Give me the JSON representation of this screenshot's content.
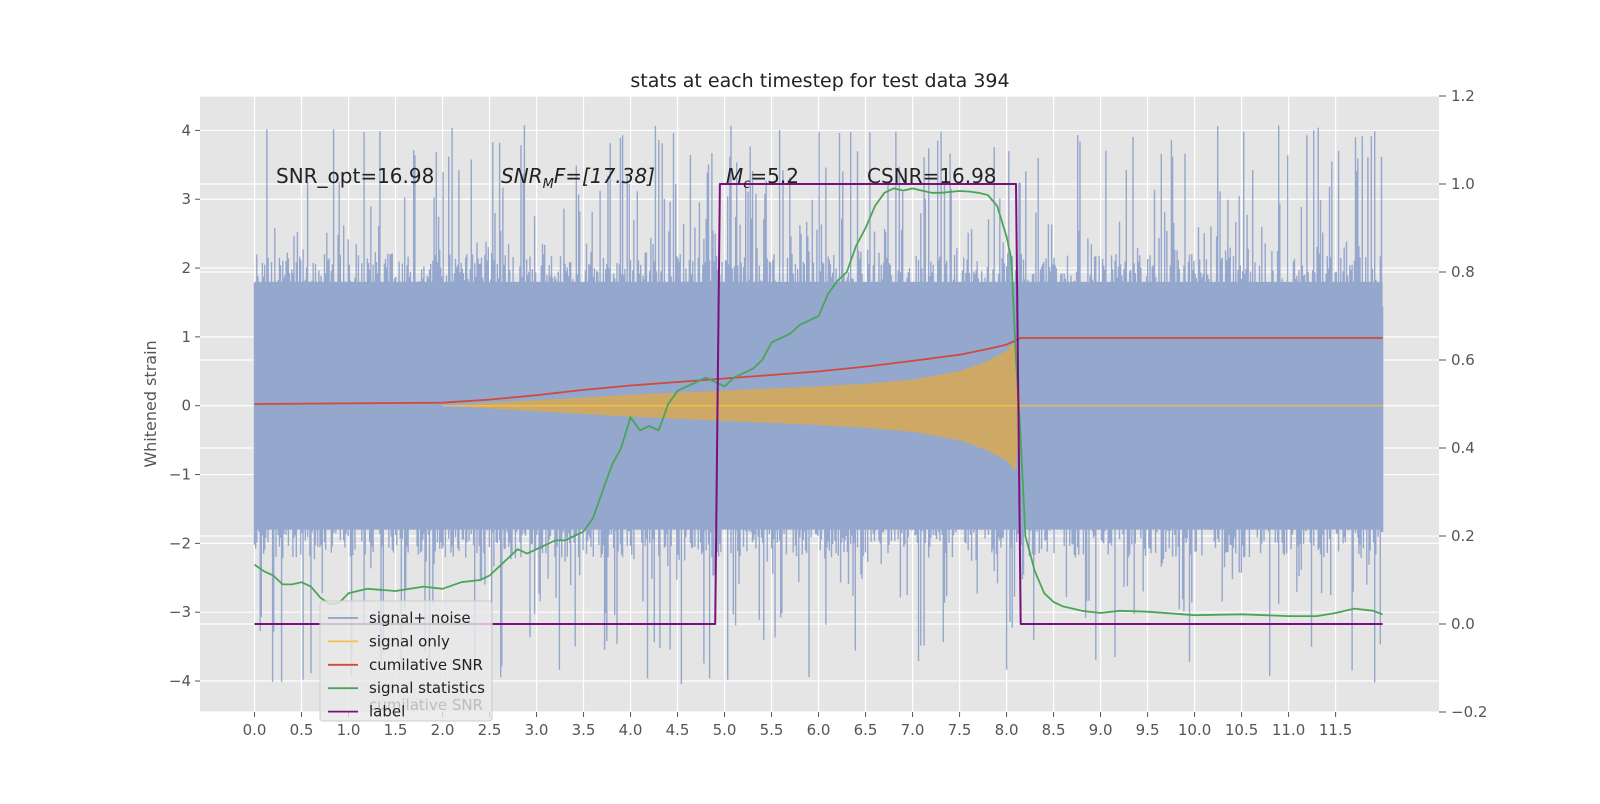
{
  "chart_data": {
    "type": "line",
    "title": "stats at each timestep for test data 394",
    "ylabel": "Whitened strain",
    "xlabel": "",
    "xlim": [
      -0.58,
      12.6
    ],
    "ylim": [
      -4.45,
      4.5
    ],
    "y2lim": [
      -0.2,
      1.2
    ],
    "grid": true,
    "background": "#e5e5e5",
    "x_ticks": [
      "0.0",
      "0.5",
      "1.0",
      "1.5",
      "2.0",
      "2.5",
      "3.0",
      "3.5",
      "4.0",
      "4.5",
      "5.0",
      "5.5",
      "6.0",
      "6.5",
      "7.0",
      "7.5",
      "8.0",
      "8.5",
      "9.0",
      "9.5",
      "10.0",
      "10.5",
      "11.0",
      "11.5"
    ],
    "y_ticks": [
      "4",
      "3",
      "2",
      "1",
      "0",
      "−1",
      "−2",
      "−3",
      "−4"
    ],
    "y2_ticks": [
      "1.2",
      "1.0",
      "0.8",
      "0.6",
      "0.4",
      "0.2",
      "0.0",
      "−0.2"
    ],
    "annotations": {
      "snr_opt": "SNR_opt=16.98",
      "snr_mf_base": "SNR",
      "snr_mf_sub": "M",
      "snr_mf_rest": "F=[17.38]",
      "mc_base": "M",
      "mc_sub": "c",
      "mc_rest": "=5.2",
      "csnr": "CSNR=16.98"
    },
    "legend_position": "lower-left",
    "legend": [
      {
        "label": "signal+ noise",
        "color": "#8da0cb"
      },
      {
        "label": "signal only",
        "color": "#f2c14e"
      },
      {
        "label": "cumilative SNR",
        "color": "#d1493f"
      },
      {
        "label": "signal statistics",
        "color": "#4aa559"
      },
      {
        "label": "label",
        "color": "#7b0f7e"
      }
    ],
    "legend_hidden_text": "cumilative SNR",
    "series": [
      {
        "name": "signal+ noise",
        "axis": "left",
        "style": "noise band",
        "x_range": [
          0,
          12.0
        ],
        "envelope_upper": 2.2,
        "envelope_lower": -2.2,
        "peak_max": 4.1,
        "peak_min": -4.05
      },
      {
        "name": "signal only",
        "axis": "left",
        "style": "chirp fill",
        "x": [
          2.0,
          3.0,
          4.0,
          5.0,
          6.0,
          6.5,
          7.0,
          7.5,
          7.8,
          8.0,
          8.1,
          8.15,
          12.0
        ],
        "amplitude": [
          0.0,
          0.08,
          0.16,
          0.22,
          0.28,
          0.32,
          0.38,
          0.5,
          0.65,
          0.8,
          0.95,
          0.0,
          0.0
        ]
      },
      {
        "name": "cumilative SNR",
        "axis": "right",
        "x": [
          0,
          2.0,
          2.5,
          3.0,
          3.5,
          4.0,
          4.5,
          5.0,
          5.5,
          6.0,
          6.5,
          7.0,
          7.5,
          7.8,
          8.0,
          8.15,
          12.0
        ],
        "y": [
          0.5,
          0.503,
          0.51,
          0.52,
          0.532,
          0.542,
          0.55,
          0.558,
          0.566,
          0.574,
          0.585,
          0.598,
          0.612,
          0.625,
          0.635,
          0.65,
          0.65
        ]
      },
      {
        "name": "signal statistics",
        "axis": "right",
        "x": [
          0,
          0.1,
          0.2,
          0.3,
          0.4,
          0.5,
          0.6,
          0.7,
          0.8,
          0.9,
          1.0,
          1.2,
          1.5,
          1.8,
          2.0,
          2.2,
          2.4,
          2.5,
          2.6,
          2.7,
          2.8,
          2.9,
          3.0,
          3.1,
          3.2,
          3.3,
          3.4,
          3.5,
          3.6,
          3.7,
          3.8,
          3.9,
          4.0,
          4.1,
          4.2,
          4.3,
          4.4,
          4.5,
          4.6,
          4.7,
          4.8,
          4.9,
          5.0,
          5.1,
          5.2,
          5.3,
          5.4,
          5.5,
          5.6,
          5.7,
          5.8,
          5.9,
          6.0,
          6.1,
          6.2,
          6.3,
          6.4,
          6.5,
          6.6,
          6.7,
          6.8,
          6.9,
          7.0,
          7.1,
          7.2,
          7.3,
          7.4,
          7.5,
          7.6,
          7.7,
          7.8,
          7.9,
          8.0,
          8.05,
          8.1,
          8.15,
          8.2,
          8.3,
          8.4,
          8.5,
          8.6,
          8.8,
          9.0,
          9.2,
          9.5,
          10.0,
          10.5,
          11.0,
          11.3,
          11.5,
          11.7,
          11.9,
          12.0
        ],
        "y": [
          0.135,
          0.12,
          0.11,
          0.09,
          0.09,
          0.095,
          0.085,
          0.06,
          0.045,
          0.048,
          0.07,
          0.08,
          0.075,
          0.085,
          0.08,
          0.095,
          0.1,
          0.11,
          0.13,
          0.15,
          0.17,
          0.16,
          0.17,
          0.18,
          0.19,
          0.19,
          0.2,
          0.21,
          0.24,
          0.3,
          0.36,
          0.4,
          0.47,
          0.44,
          0.45,
          0.44,
          0.5,
          0.53,
          0.54,
          0.55,
          0.56,
          0.55,
          0.54,
          0.56,
          0.57,
          0.58,
          0.6,
          0.64,
          0.65,
          0.66,
          0.68,
          0.69,
          0.7,
          0.75,
          0.78,
          0.8,
          0.86,
          0.9,
          0.95,
          0.98,
          0.99,
          0.985,
          0.99,
          0.985,
          0.98,
          0.98,
          0.982,
          0.984,
          0.983,
          0.98,
          0.975,
          0.95,
          0.88,
          0.83,
          0.6,
          0.42,
          0.2,
          0.12,
          0.07,
          0.05,
          0.04,
          0.03,
          0.025,
          0.03,
          0.028,
          0.02,
          0.022,
          0.018,
          0.018,
          0.025,
          0.035,
          0.03,
          0.022
        ]
      },
      {
        "name": "label",
        "axis": "right",
        "x": [
          0,
          4.9,
          4.95,
          8.1,
          8.15,
          12.0
        ],
        "y": [
          0.0,
          0.0,
          1.0,
          1.0,
          0.0,
          0.0
        ]
      }
    ]
  }
}
